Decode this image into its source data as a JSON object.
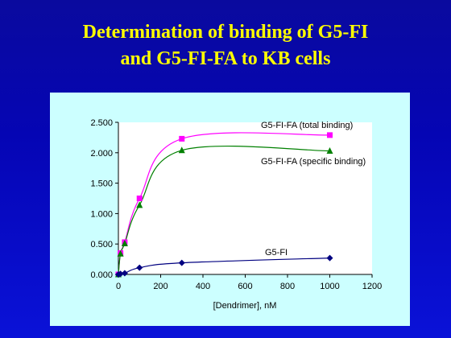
{
  "slide": {
    "title_line1": "Determination of binding of G5-FI",
    "title_line2": "and G5-FI-FA to KB cells"
  },
  "colors": {
    "background": "#0505b4",
    "title": "#ffff00",
    "panel": "#ccffff",
    "plot_area": "#ffffff"
  },
  "chart_data": {
    "type": "line",
    "title": "",
    "xlabel": "[Dendrimer], nM",
    "ylabel": "",
    "xlim": [
      0,
      1200
    ],
    "ylim": [
      0,
      2.5
    ],
    "x_ticks": [
      0,
      200,
      400,
      600,
      800,
      1000,
      1200
    ],
    "x_tick_labels": [
      "0",
      "200",
      "400",
      "600",
      "800",
      "1000",
      "1200"
    ],
    "y_ticks": [
      0,
      0.5,
      1,
      1.5,
      2,
      2.5
    ],
    "y_tick_labels": [
      "0.000",
      "0.500",
      "1.000",
      "1.500",
      "2.000",
      "2.500"
    ],
    "grid": false,
    "legend": "none (series labeled directly on plot)",
    "series": [
      {
        "name": "G5-FI-FA (total binding)",
        "color": "#ff00ff",
        "marker": "square",
        "x": [
          0,
          10,
          30,
          100,
          300,
          1000
        ],
        "y": [
          0.0,
          0.35,
          0.53,
          1.25,
          2.23,
          2.29
        ]
      },
      {
        "name": "G5-FI-FA (specific binding)",
        "color": "#008000",
        "marker": "triangle",
        "x": [
          0,
          10,
          30,
          100,
          300,
          1000
        ],
        "y": [
          0.0,
          0.34,
          0.51,
          1.14,
          2.04,
          2.03
        ]
      },
      {
        "name": "G5-FI",
        "color": "#000080",
        "marker": "diamond",
        "x": [
          0,
          10,
          30,
          100,
          300,
          1000
        ],
        "y": [
          0.0,
          0.01,
          0.02,
          0.11,
          0.19,
          0.27
        ]
      }
    ]
  }
}
